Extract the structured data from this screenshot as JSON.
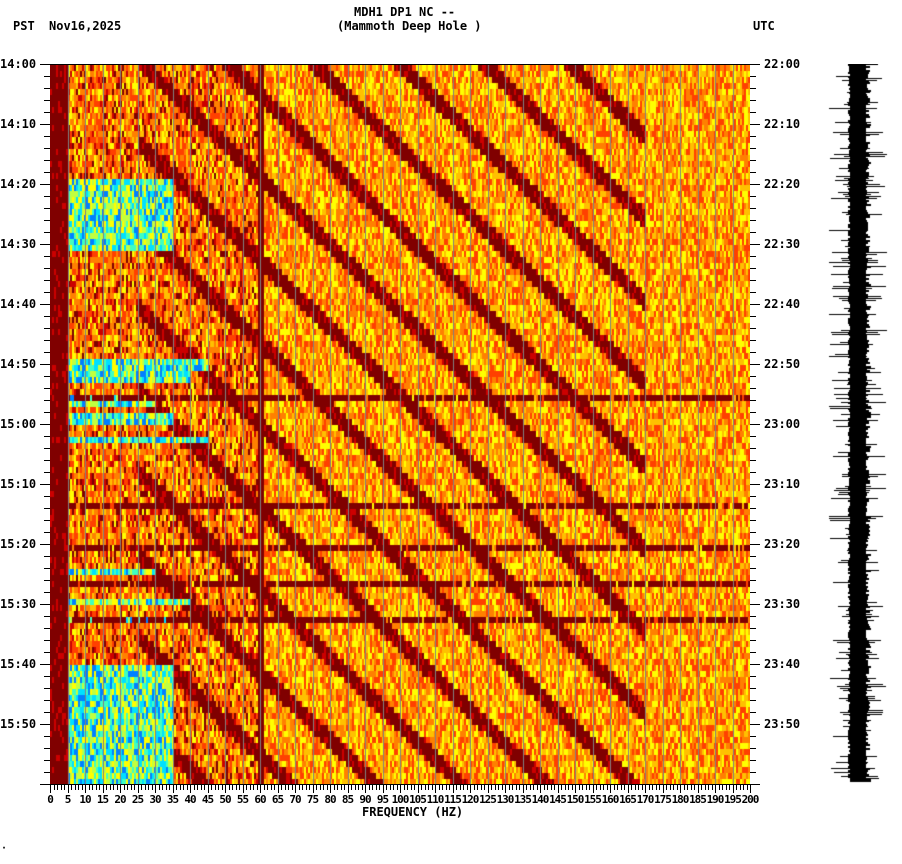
{
  "header": {
    "timezone_left": "PST",
    "date": "Nov16,2025",
    "station": "MDH1 DP1 NC --",
    "location": "(Mammoth Deep Hole )",
    "timezone_right": "UTC"
  },
  "footer_mark": "·",
  "chart_data": {
    "type": "heatmap",
    "title": "MDH1 DP1 NC -- (Mammoth Deep Hole )",
    "subtitle": "Nov16,2025",
    "xlabel": "FREQUENCY (HZ)",
    "ylabel_left": "PST",
    "ylabel_right": "UTC",
    "xlim": [
      0,
      200
    ],
    "x_tick_step": 5,
    "x_minor_tick_step": 1,
    "x_ticks": [
      "0",
      "5",
      "10",
      "15",
      "20",
      "25",
      "30",
      "35",
      "40",
      "45",
      "50",
      "55",
      "60",
      "65",
      "70",
      "75",
      "80",
      "85",
      "90",
      "95",
      "100",
      "105",
      "110",
      "115",
      "120",
      "125",
      "130",
      "135",
      "140",
      "145",
      "150",
      "155",
      "160",
      "165",
      "170",
      "175",
      "180",
      "185",
      "190",
      "195",
      "200"
    ],
    "y_ticks_pst": [
      "14:00",
      "14:10",
      "14:20",
      "14:30",
      "14:40",
      "14:50",
      "15:00",
      "15:10",
      "15:20",
      "15:30",
      "15:40",
      "15:50"
    ],
    "y_ticks_utc": [
      "22:00",
      "22:10",
      "22:20",
      "22:30",
      "22:40",
      "22:50",
      "23:00",
      "23:10",
      "23:20",
      "23:30",
      "23:40",
      "23:50"
    ],
    "time_range_pst": [
      "14:00",
      "16:00"
    ],
    "time_range_utc": [
      "22:00",
      "00:00"
    ],
    "minor_tick_minutes": 2,
    "grid": {
      "vertical_lines_every_hz": 5,
      "color": "#808080"
    },
    "colormap": [
      "#800000",
      "#cc0000",
      "#ff4000",
      "#ff8000",
      "#ffc000",
      "#ffff00",
      "#c0ff40",
      "#40ffc0",
      "#00e0ff",
      "#0080ff"
    ],
    "features": [
      {
        "description": "Low-frequency dark band 0-5 Hz throughout",
        "freq_hz": [
          0,
          5
        ]
      },
      {
        "description": "Strong energy (cyan/green) 5-35 Hz around 14:19-14:30 PST",
        "time": [
          "14:19",
          "14:31"
        ],
        "freq_hz": [
          5,
          35
        ]
      },
      {
        "description": "Horizontal cyan stripes 0-45 Hz between 14:49 and 15:02 PST",
        "time": [
          "14:49",
          "15:02"
        ],
        "freq_hz": [
          0,
          45
        ]
      },
      {
        "description": "Cyan stripes 0-30 Hz around 15:24-15:32 PST",
        "time": [
          "15:24",
          "15:32"
        ],
        "freq_hz": [
          0,
          30
        ]
      },
      {
        "description": "Broad cyan/green energy 0-40 Hz from 15:40 to 16:00 PST",
        "time": [
          "15:40",
          "16:00"
        ],
        "freq_hz": [
          0,
          40
        ]
      },
      {
        "description": "Diagonal gliding harmonic bands (dark) rising in frequency with time",
        "freq_hz": [
          25,
          160
        ]
      },
      {
        "description": "Persistent dark line near 60 Hz",
        "freq_hz": [
          60,
          60
        ]
      },
      {
        "description": "Horizontal dark-red bands across all frequencies at ~14:55, ~15:20, ~15:26, ~15:33 PST"
      }
    ],
    "seismogram": {
      "position": "right",
      "color": "#000000",
      "time_range_pst": [
        "14:00",
        "16:00"
      ]
    }
  }
}
